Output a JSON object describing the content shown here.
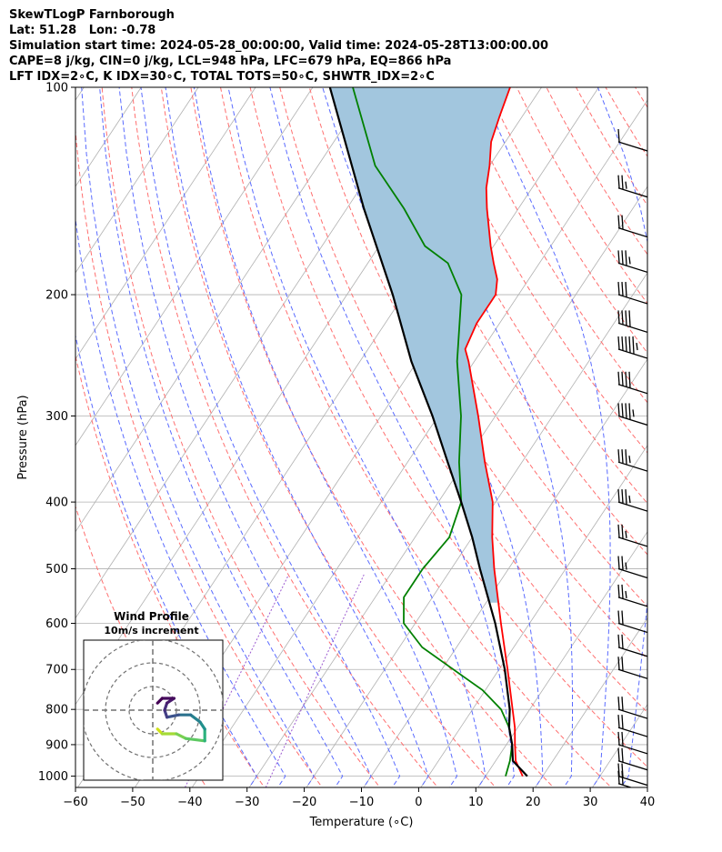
{
  "header": {
    "title": "SkewTLogP Farnborough",
    "location": "Lat: 51.28   Lon: -0.78",
    "times": "Simulation start time: 2024-05-28_00:00:00, Valid time: 2024-05-28T13:00:00.00",
    "indices_1": "CAPE=8 j/kg, CIN=0 j/kg, LCL=948 hPa, LFC=679 hPa, EQ=866 hPa",
    "indices_2": "LFT IDX=2∘C, K IDX=30∘C, TOTAL TOTS=50∘C, SHWTR_IDX=2∘C"
  },
  "chart_data": {
    "type": "line",
    "xlabel": "Temperature (∘C)",
    "ylabel": "Pressure (hPa)",
    "xlim": [
      -60,
      40
    ],
    "ylim": [
      1050,
      100
    ],
    "y_scale": "log",
    "skew": true,
    "grid": true,
    "x_ticks": [
      -60,
      -50,
      -40,
      -30,
      -20,
      -10,
      0,
      10,
      20,
      30,
      40
    ],
    "y_ticks": [
      100,
      200,
      300,
      400,
      500,
      600,
      700,
      800,
      900,
      1000
    ],
    "series": [
      {
        "role": "temperature",
        "color": "#ff0000",
        "points": [
          {
            "p": 1000,
            "t": 16.5
          },
          {
            "p": 950,
            "t": 13.5
          },
          {
            "p": 900,
            "t": 11.5
          },
          {
            "p": 850,
            "t": 9.5
          },
          {
            "p": 800,
            "t": 7.0
          },
          {
            "p": 700,
            "t": 1.5
          },
          {
            "p": 600,
            "t": -5.0
          },
          {
            "p": 500,
            "t": -12.5
          },
          {
            "p": 450,
            "t": -16.5
          },
          {
            "p": 400,
            "t": -20.5
          },
          {
            "p": 350,
            "t": -26.5
          },
          {
            "p": 300,
            "t": -33.0
          },
          {
            "p": 250,
            "t": -41.0
          },
          {
            "p": 240,
            "t": -43.0
          },
          {
            "p": 220,
            "t": -44.0
          },
          {
            "p": 200,
            "t": -44.0
          },
          {
            "p": 190,
            "t": -45.5
          },
          {
            "p": 180,
            "t": -48.0
          },
          {
            "p": 170,
            "t": -50.5
          },
          {
            "p": 150,
            "t": -55.5
          },
          {
            "p": 140,
            "t": -58.0
          },
          {
            "p": 130,
            "t": -60.0
          },
          {
            "p": 120,
            "t": -62.5
          },
          {
            "p": 110,
            "t": -64.0
          },
          {
            "p": 100,
            "t": -65.5
          }
        ]
      },
      {
        "role": "dewpoint",
        "color": "#008000",
        "points": [
          {
            "p": 1000,
            "t": 13.5
          },
          {
            "p": 950,
            "t": 12.5
          },
          {
            "p": 900,
            "t": 11.0
          },
          {
            "p": 850,
            "t": 8.5
          },
          {
            "p": 800,
            "t": 5.0
          },
          {
            "p": 750,
            "t": -0.5
          },
          {
            "p": 700,
            "t": -8.0
          },
          {
            "p": 650,
            "t": -16.0
          },
          {
            "p": 600,
            "t": -22.0
          },
          {
            "p": 550,
            "t": -25.0
          },
          {
            "p": 500,
            "t": -25.0
          },
          {
            "p": 450,
            "t": -24.0
          },
          {
            "p": 400,
            "t": -26.0
          },
          {
            "p": 350,
            "t": -31.0
          },
          {
            "p": 300,
            "t": -36.0
          },
          {
            "p": 250,
            "t": -43.0
          },
          {
            "p": 220,
            "t": -47.0
          },
          {
            "p": 200,
            "t": -50.0
          },
          {
            "p": 180,
            "t": -56.0
          },
          {
            "p": 170,
            "t": -62.0
          },
          {
            "p": 150,
            "t": -70.0
          },
          {
            "p": 130,
            "t": -80.0
          },
          {
            "p": 100,
            "t": -93.0
          }
        ]
      },
      {
        "role": "parcel",
        "color": "#000000",
        "points": [
          {
            "p": 1000,
            "t": 17.3
          },
          {
            "p": 950,
            "t": 13.0
          },
          {
            "p": 900,
            "t": 11.0
          },
          {
            "p": 850,
            "t": 8.5
          },
          {
            "p": 800,
            "t": 6.5
          },
          {
            "p": 700,
            "t": 1.0
          },
          {
            "p": 600,
            "t": -6.0
          },
          {
            "p": 500,
            "t": -15.0
          },
          {
            "p": 450,
            "t": -20.0
          },
          {
            "p": 400,
            "t": -26.0
          },
          {
            "p": 350,
            "t": -33.0
          },
          {
            "p": 300,
            "t": -41.0
          },
          {
            "p": 250,
            "t": -51.0
          },
          {
            "p": 200,
            "t": -62.0
          },
          {
            "p": 150,
            "t": -77.0
          },
          {
            "p": 100,
            "t": -97.0
          }
        ]
      }
    ],
    "cape_fill_color": "#a2c6de",
    "wind_barbs": [
      {
        "p": 1025,
        "speed_kt": 20
      },
      {
        "p": 1000,
        "speed_kt": 20
      },
      {
        "p": 950,
        "speed_kt": 20
      },
      {
        "p": 900,
        "speed_kt": 20
      },
      {
        "p": 850,
        "speed_kt": 20
      },
      {
        "p": 800,
        "speed_kt": 20
      },
      {
        "p": 700,
        "speed_kt": 20
      },
      {
        "p": 650,
        "speed_kt": 20
      },
      {
        "p": 600,
        "speed_kt": 20
      },
      {
        "p": 550,
        "speed_kt": 15
      },
      {
        "p": 500,
        "speed_kt": 15
      },
      {
        "p": 450,
        "speed_kt": 15
      },
      {
        "p": 400,
        "speed_kt": 25
      },
      {
        "p": 350,
        "speed_kt": 25
      },
      {
        "p": 300,
        "speed_kt": 35
      },
      {
        "p": 270,
        "speed_kt": 40
      },
      {
        "p": 240,
        "speed_kt": 45
      },
      {
        "p": 220,
        "speed_kt": 40
      },
      {
        "p": 200,
        "speed_kt": 30
      },
      {
        "p": 180,
        "speed_kt": 25
      },
      {
        "p": 160,
        "speed_kt": 20
      },
      {
        "p": 140,
        "speed_kt": 15
      },
      {
        "p": 120,
        "speed_kt": 10
      }
    ],
    "inset": {
      "title": "Wind Profile",
      "subtitle": "10m/s increment",
      "type": "hodograph",
      "rings": [
        10,
        20,
        30
      ],
      "trace": [
        {
          "u": 2,
          "v": -8,
          "color": "#cfe11a"
        },
        {
          "u": 4,
          "v": -10,
          "color": "#a5db36"
        },
        {
          "u": 10,
          "v": -10,
          "color": "#7ad151"
        },
        {
          "u": 14,
          "v": -12,
          "color": "#5ec962"
        },
        {
          "u": 22,
          "v": -13,
          "color": "#2db27d"
        },
        {
          "u": 22,
          "v": -8,
          "color": "#21918c"
        },
        {
          "u": 20,
          "v": -5,
          "color": "#26828e"
        },
        {
          "u": 16,
          "v": -2,
          "color": "#2c728e"
        },
        {
          "u": 11,
          "v": -2,
          "color": "#3b528b"
        },
        {
          "u": 6,
          "v": -3,
          "color": "#433e85"
        },
        {
          "u": 5,
          "v": 0,
          "color": "#472d7b"
        },
        {
          "u": 6,
          "v": 3,
          "color": "#481a6c"
        },
        {
          "u": 9,
          "v": 5,
          "color": "#460b5e"
        },
        {
          "u": 4,
          "v": 5,
          "color": "#440154"
        },
        {
          "u": 2,
          "v": 3,
          "color": "#440154"
        }
      ]
    }
  }
}
